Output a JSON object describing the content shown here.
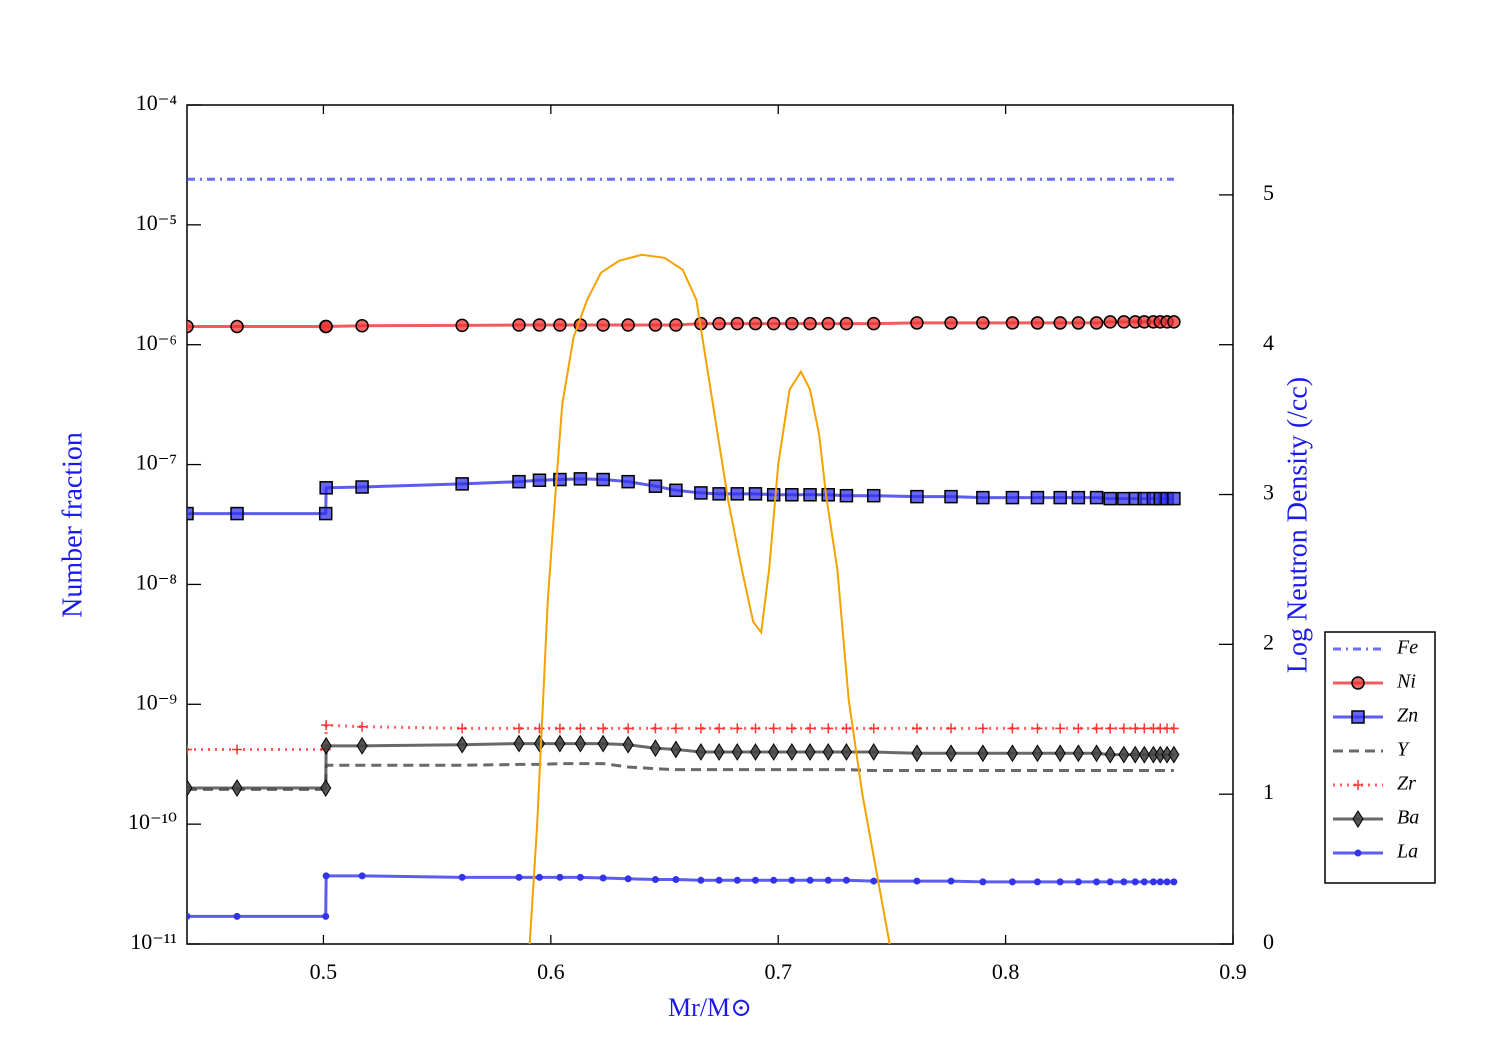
{
  "chart_data": {
    "type": "line",
    "xlabel": "Mr/M⊙",
    "ylabel": "Number fraction",
    "y2label": "Log Neutron Density (/cc)",
    "xlim": [
      0.44,
      0.9
    ],
    "xticks": [
      0.5,
      0.6,
      0.7,
      0.8,
      0.9
    ],
    "ylim": [
      1e-11,
      0.0001
    ],
    "yscale": "log",
    "yticks": [
      {
        "value": 1e-11,
        "label": "10⁻¹¹"
      },
      {
        "value": 1e-10,
        "label": "10⁻¹⁰"
      },
      {
        "value": 1e-09,
        "label": "10⁻⁹"
      },
      {
        "value": 1e-08,
        "label": "10⁻⁸"
      },
      {
        "value": 1e-07,
        "label": "10⁻⁷"
      },
      {
        "value": 1e-06,
        "label": "10⁻⁶"
      },
      {
        "value": 1e-05,
        "label": "10⁻⁵"
      },
      {
        "value": 0.0001,
        "label": "10⁻⁴"
      }
    ],
    "y2lim": [
      0,
      5.6
    ],
    "y2ticks": [
      0,
      1,
      2,
      3,
      4,
      5
    ],
    "legend": "outside right",
    "x": [
      0.44,
      0.462,
      0.501,
      0.5012,
      0.517,
      0.561,
      0.586,
      0.595,
      0.604,
      0.613,
      0.623,
      0.634,
      0.646,
      0.655,
      0.666,
      0.674,
      0.682,
      0.69,
      0.698,
      0.706,
      0.714,
      0.722,
      0.73,
      0.742,
      0.761,
      0.776,
      0.79,
      0.803,
      0.814,
      0.824,
      0.832,
      0.84,
      0.846,
      0.852,
      0.857,
      0.861,
      0.865,
      0.868,
      0.871,
      0.874
    ],
    "series": [
      {
        "name": "Fe",
        "color": "#4a4aee",
        "linestyle": "dashdot",
        "marker": "none",
        "values": [
          2.4e-05,
          2.4e-05,
          2.4e-05,
          2.4e-05,
          2.4e-05,
          2.4e-05,
          2.4e-05,
          2.4e-05,
          2.4e-05,
          2.4e-05,
          2.4e-05,
          2.4e-05,
          2.4e-05,
          2.4e-05,
          2.4e-05,
          2.4e-05,
          2.4e-05,
          2.4e-05,
          2.4e-05,
          2.4e-05,
          2.4e-05,
          2.4e-05,
          2.4e-05,
          2.4e-05,
          2.4e-05,
          2.4e-05,
          2.4e-05,
          2.4e-05,
          2.4e-05,
          2.4e-05,
          2.4e-05,
          2.4e-05,
          2.4e-05,
          2.4e-05,
          2.4e-05,
          2.4e-05,
          2.4e-05,
          2.4e-05,
          2.4e-05,
          2.4e-05
        ]
      },
      {
        "name": "Ni",
        "color": "#ee3333",
        "linestyle": "solid",
        "marker": "circle",
        "values": [
          1.42e-06,
          1.42e-06,
          1.42e-06,
          1.42e-06,
          1.44e-06,
          1.45e-06,
          1.46e-06,
          1.46e-06,
          1.46e-06,
          1.46e-06,
          1.46e-06,
          1.46e-06,
          1.46e-06,
          1.46e-06,
          1.5e-06,
          1.5e-06,
          1.5e-06,
          1.5e-06,
          1.5e-06,
          1.5e-06,
          1.5e-06,
          1.5e-06,
          1.5e-06,
          1.5e-06,
          1.52e-06,
          1.52e-06,
          1.52e-06,
          1.52e-06,
          1.52e-06,
          1.52e-06,
          1.52e-06,
          1.52e-06,
          1.55e-06,
          1.55e-06,
          1.55e-06,
          1.55e-06,
          1.55e-06,
          1.55e-06,
          1.55e-06,
          1.55e-06
        ]
      },
      {
        "name": "Zn",
        "color": "#3333ee",
        "linestyle": "solid",
        "marker": "square",
        "values": [
          3.9e-08,
          3.9e-08,
          3.9e-08,
          6.4e-08,
          6.5e-08,
          6.9e-08,
          7.2e-08,
          7.4e-08,
          7.5e-08,
          7.6e-08,
          7.5e-08,
          7.2e-08,
          6.6e-08,
          6.1e-08,
          5.8e-08,
          5.7e-08,
          5.7e-08,
          5.7e-08,
          5.6e-08,
          5.6e-08,
          5.6e-08,
          5.6e-08,
          5.5e-08,
          5.5e-08,
          5.4e-08,
          5.4e-08,
          5.3e-08,
          5.3e-08,
          5.3e-08,
          5.3e-08,
          5.3e-08,
          5.3e-08,
          5.2e-08,
          5.2e-08,
          5.2e-08,
          5.2e-08,
          5.2e-08,
          5.2e-08,
          5.2e-08,
          5.2e-08
        ]
      },
      {
        "name": "Y",
        "color": "#444444",
        "linestyle": "dashed",
        "marker": "none",
        "values": [
          1.95e-10,
          1.95e-10,
          1.95e-10,
          3.1e-10,
          3.1e-10,
          3.1e-10,
          3.15e-10,
          3.15e-10,
          3.2e-10,
          3.2e-10,
          3.2e-10,
          3e-10,
          2.9e-10,
          2.85e-10,
          2.85e-10,
          2.85e-10,
          2.85e-10,
          2.85e-10,
          2.85e-10,
          2.85e-10,
          2.85e-10,
          2.85e-10,
          2.85e-10,
          2.8e-10,
          2.8e-10,
          2.8e-10,
          2.8e-10,
          2.8e-10,
          2.8e-10,
          2.8e-10,
          2.8e-10,
          2.8e-10,
          2.8e-10,
          2.8e-10,
          2.8e-10,
          2.8e-10,
          2.8e-10,
          2.8e-10,
          2.8e-10,
          2.8e-10
        ]
      },
      {
        "name": "Zr",
        "color": "#ff3333",
        "linestyle": "dotted",
        "marker": "plus",
        "values": [
          4.2e-10,
          4.2e-10,
          4.2e-10,
          6.7e-10,
          6.5e-10,
          6.3e-10,
          6.3e-10,
          6.3e-10,
          6.3e-10,
          6.3e-10,
          6.3e-10,
          6.3e-10,
          6.3e-10,
          6.3e-10,
          6.3e-10,
          6.3e-10,
          6.3e-10,
          6.3e-10,
          6.3e-10,
          6.3e-10,
          6.3e-10,
          6.3e-10,
          6.3e-10,
          6.3e-10,
          6.3e-10,
          6.3e-10,
          6.3e-10,
          6.3e-10,
          6.3e-10,
          6.3e-10,
          6.3e-10,
          6.3e-10,
          6.3e-10,
          6.3e-10,
          6.3e-10,
          6.3e-10,
          6.3e-10,
          6.3e-10,
          6.3e-10,
          6.3e-10
        ]
      },
      {
        "name": "Ba",
        "color": "#444444",
        "linestyle": "solid",
        "marker": "diamond",
        "values": [
          2e-10,
          2e-10,
          2e-10,
          4.5e-10,
          4.5e-10,
          4.6e-10,
          4.7e-10,
          4.7e-10,
          4.7e-10,
          4.7e-10,
          4.7e-10,
          4.6e-10,
          4.3e-10,
          4.2e-10,
          4e-10,
          4e-10,
          4e-10,
          4e-10,
          4e-10,
          4e-10,
          4e-10,
          4e-10,
          4e-10,
          4e-10,
          3.9e-10,
          3.9e-10,
          3.9e-10,
          3.9e-10,
          3.9e-10,
          3.9e-10,
          3.9e-10,
          3.9e-10,
          3.8e-10,
          3.8e-10,
          3.8e-10,
          3.8e-10,
          3.8e-10,
          3.8e-10,
          3.8e-10,
          3.8e-10
        ]
      },
      {
        "name": "La",
        "color": "#3333ee",
        "linestyle": "solid",
        "marker": "dot",
        "values": [
          1.7e-11,
          1.7e-11,
          1.7e-11,
          3.7e-11,
          3.7e-11,
          3.6e-11,
          3.6e-11,
          3.6e-11,
          3.6e-11,
          3.6e-11,
          3.55e-11,
          3.5e-11,
          3.45e-11,
          3.45e-11,
          3.4e-11,
          3.4e-11,
          3.4e-11,
          3.4e-11,
          3.4e-11,
          3.4e-11,
          3.4e-11,
          3.4e-11,
          3.4e-11,
          3.35e-11,
          3.35e-11,
          3.35e-11,
          3.3e-11,
          3.3e-11,
          3.3e-11,
          3.3e-11,
          3.3e-11,
          3.3e-11,
          3.3e-11,
          3.3e-11,
          3.3e-11,
          3.3e-11,
          3.3e-11,
          3.3e-11,
          3.3e-11,
          3.3e-11
        ]
      },
      {
        "color": "#f5a100",
        "linestyle": "solid",
        "marker": "none",
        "axis": "y2",
        "x": [
          0.5907,
          0.594,
          0.5987,
          0.602,
          0.605,
          0.61,
          0.616,
          0.622,
          0.63,
          0.64,
          0.65,
          0.658,
          0.664,
          0.671,
          0.678,
          0.684,
          0.689,
          0.6925,
          0.696,
          0.7,
          0.705,
          0.71,
          0.714,
          0.718,
          0.721,
          0.726,
          0.731,
          0.737,
          0.743,
          0.749
        ],
        "values": [
          0,
          0.8,
          2.3,
          3.0,
          3.6,
          4.05,
          4.3,
          4.48,
          4.56,
          4.6,
          4.58,
          4.5,
          4.3,
          3.63,
          2.96,
          2.5,
          2.15,
          2.08,
          2.5,
          3.2,
          3.7,
          3.82,
          3.7,
          3.4,
          3.0,
          2.5,
          1.63,
          1.0,
          0.5,
          0
        ]
      }
    ]
  }
}
